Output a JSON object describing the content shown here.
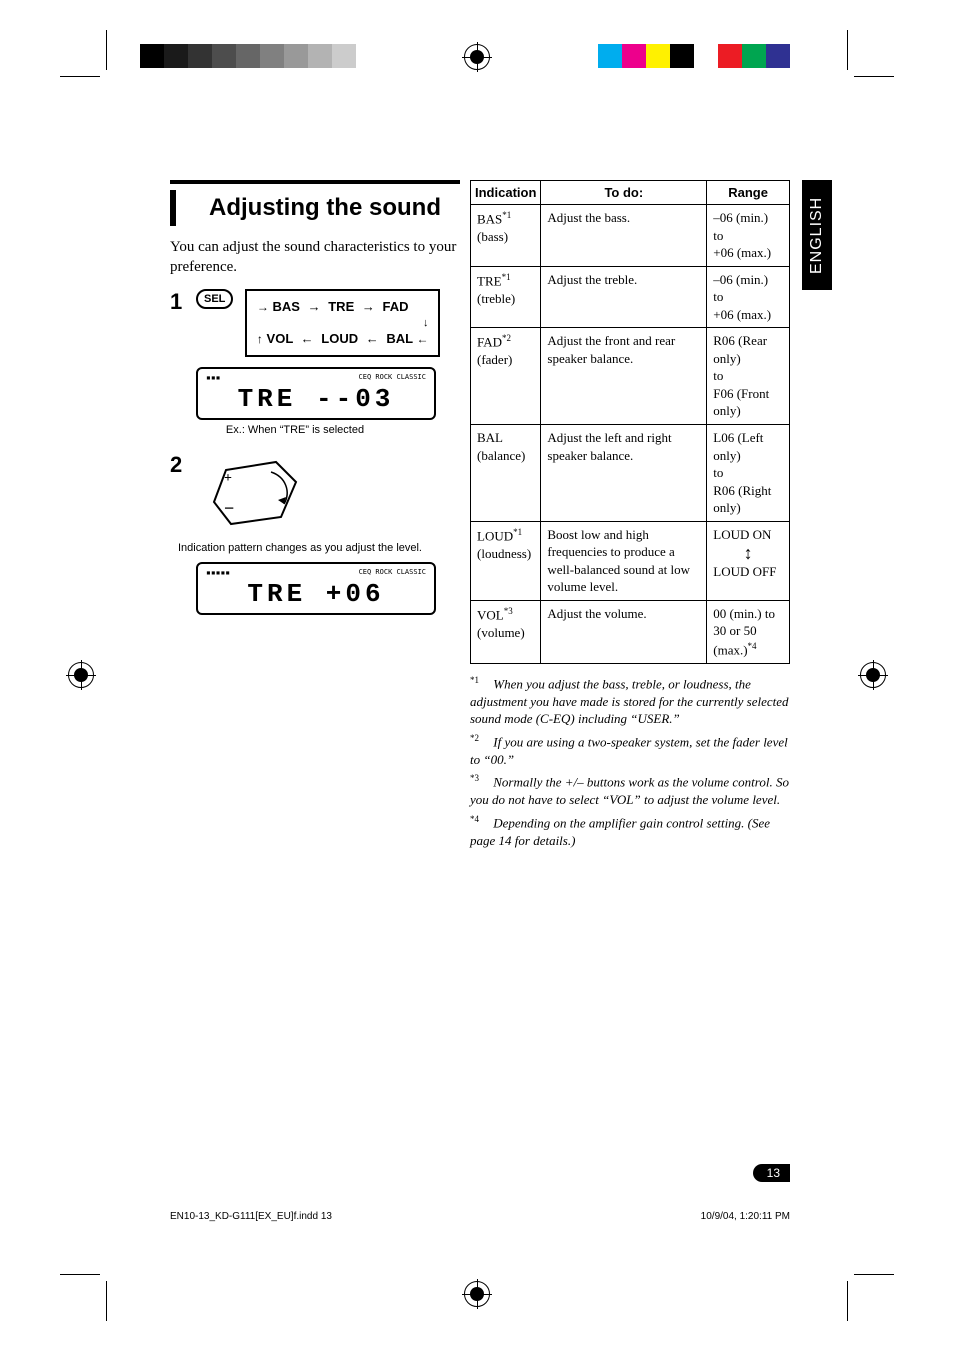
{
  "crop_colors_right": [
    "#00adee",
    "#ed008c",
    "#fff100",
    "#000000",
    "",
    "#ec1c24",
    "#00a550",
    "#2f3192",
    "#ffffff"
  ],
  "graybar_shades": [
    "#000000",
    "#1a1a1a",
    "#333333",
    "#4d4d4d",
    "#666666",
    "#808080",
    "#999999",
    "#b3b3b3",
    "#cccccc",
    "#ffffff"
  ],
  "heading": "Adjusting the sound",
  "intro": "You can adjust the sound characteristics to your preference.",
  "step1_num": "1",
  "sel_label": "SEL",
  "flow_top": [
    "BAS",
    "TRE",
    "FAD"
  ],
  "flow_bot": [
    "VOL",
    "LOUD",
    "BAL"
  ],
  "lcd1_seg": "TRE  --03",
  "lcd1_note": "Ex.: When “TRE” is selected",
  "step2_num": "2",
  "pattern_note": "Indication pattern changes as you adjust the level.",
  "lcd2_seg": "TRE  +06",
  "table": {
    "headers": [
      "Indication",
      "To do:",
      "Range"
    ],
    "rows": [
      {
        "ind": "BAS",
        "sup": "*1",
        "sub": "(bass)",
        "todo": "Adjust the bass.",
        "range": "–06 (min.)\nto\n+06 (max.)"
      },
      {
        "ind": "TRE",
        "sup": "*1",
        "sub": "(treble)",
        "todo": "Adjust the treble.",
        "range": "–06 (min.)\nto\n+06 (max.)"
      },
      {
        "ind": "FAD",
        "sup": "*2",
        "sub": "(fader)",
        "todo": "Adjust the front and rear speaker balance.",
        "range": "R06 (Rear only)\nto\nF06 (Front only)"
      },
      {
        "ind": "BAL",
        "sup": "",
        "sub": "(balance)",
        "todo": "Adjust the left and right speaker balance.",
        "range": "L06 (Left only)\nto\nR06 (Right only)"
      },
      {
        "ind": "LOUD",
        "sup": "*1",
        "sub": "(loudness)",
        "todo": "Boost low and high frequencies to produce a well-balanced sound at low volume level.",
        "range": "LOUD ON\n↕\nLOUD OFF",
        "arrow": true
      },
      {
        "ind": "VOL",
        "sup": "*3",
        "sub": "(volume)",
        "todo": "Adjust the volume.",
        "range": "00 (min.) to 30 or 50 (max.)*4"
      }
    ]
  },
  "footnotes": [
    {
      "label": "*1",
      "text": "When you adjust the bass, treble, or loudness, the adjustment you have made is stored for the currently selected sound mode (C-EQ) including “USER.”"
    },
    {
      "label": "*2",
      "text": "If you are using a two-speaker system, set the fader level to “00.”"
    },
    {
      "label": "*3",
      "text": "Normally the +/– buttons work as the volume control. So you do not have to select “VOL” to adjust the volume level."
    },
    {
      "label": "*4",
      "text": "Depending on the amplifier gain control setting. (See page 14 for details.)"
    }
  ],
  "side_tab": "ENGLISH",
  "page_number": "13",
  "footer_left": "EN10-13_KD-G111[EX_EU]f.indd   13",
  "footer_right": "10/9/04, 1:20:11 PM"
}
